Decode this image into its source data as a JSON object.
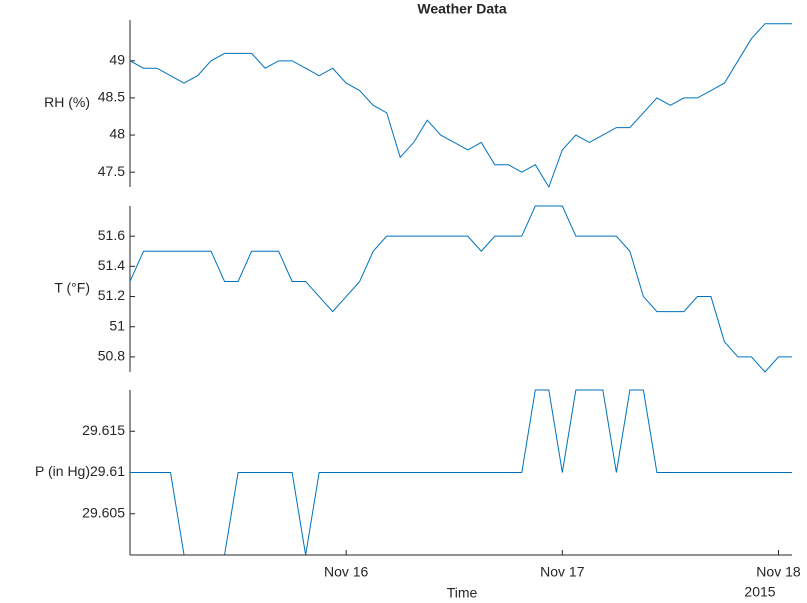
{
  "chart_data": {
    "type": "line",
    "title": "Weather Data",
    "xlabel": "Time",
    "x_secondary_label": "2015",
    "x": [
      15,
      15.0625,
      15.125,
      15.1875,
      15.25,
      15.3125,
      15.375,
      15.4375,
      15.5,
      15.5625,
      15.625,
      15.6875,
      15.75,
      15.8125,
      15.875,
      15.9375,
      16,
      16.0625,
      16.125,
      16.1875,
      16.25,
      16.3125,
      16.375,
      16.4375,
      16.5,
      16.5625,
      16.625,
      16.6875,
      16.75,
      16.8125,
      16.875,
      16.9375,
      17,
      17.0625,
      17.125,
      17.1875,
      17.25,
      17.3125,
      17.375,
      17.4375,
      17.5,
      17.5625,
      17.625,
      17.6875,
      17.75,
      17.8125,
      17.875,
      17.9375,
      18,
      18.0625
    ],
    "xlim": [
      15,
      18.0625
    ],
    "xticks": [
      {
        "value": 16,
        "label": "Nov 16"
      },
      {
        "value": 17,
        "label": "Nov 17"
      },
      {
        "value": 18,
        "label": "Nov 18"
      }
    ],
    "color": "#0072bd",
    "panels": [
      {
        "name": "RH (%)",
        "ylim": [
          47.3,
          49.55
        ],
        "yticks": [
          47.5,
          48,
          48.5,
          49
        ],
        "values": [
          49.0,
          48.9,
          48.9,
          48.8,
          48.7,
          48.8,
          49.0,
          49.1,
          49.1,
          49.1,
          48.9,
          49.0,
          49.0,
          48.9,
          48.8,
          48.9,
          48.7,
          48.6,
          48.4,
          48.3,
          47.7,
          47.9,
          48.2,
          48.0,
          47.9,
          47.8,
          47.9,
          47.6,
          47.6,
          47.5,
          47.6,
          47.3,
          47.8,
          48.0,
          47.9,
          48.0,
          48.1,
          48.1,
          48.3,
          48.5,
          48.4,
          48.5,
          48.5,
          48.6,
          48.7,
          49.0,
          49.3,
          49.5,
          49.5,
          49.5
        ]
      },
      {
        "name": "T (°F)",
        "ylim": [
          50.7,
          51.8
        ],
        "yticks": [
          50.8,
          51,
          51.2,
          51.4,
          51.6
        ],
        "values": [
          51.3,
          51.5,
          51.5,
          51.5,
          51.5,
          51.5,
          51.5,
          51.3,
          51.3,
          51.5,
          51.5,
          51.5,
          51.3,
          51.3,
          51.2,
          51.1,
          51.2,
          51.3,
          51.5,
          51.6,
          51.6,
          51.6,
          51.6,
          51.6,
          51.6,
          51.6,
          51.5,
          51.6,
          51.6,
          51.6,
          51.8,
          51.8,
          51.8,
          51.6,
          51.6,
          51.6,
          51.6,
          51.5,
          51.2,
          51.1,
          51.1,
          51.1,
          51.2,
          51.2,
          50.9,
          50.8,
          50.8,
          50.7,
          50.8,
          50.8
        ]
      },
      {
        "name": "P (in Hg)",
        "ylim": [
          29.6,
          29.62
        ],
        "yticks": [
          29.605,
          29.61,
          29.615
        ],
        "values": [
          29.61,
          29.61,
          29.61,
          29.61,
          29.6,
          29.6,
          29.6,
          29.6,
          29.61,
          29.61,
          29.61,
          29.61,
          29.61,
          29.6,
          29.61,
          29.61,
          29.61,
          29.61,
          29.61,
          29.61,
          29.61,
          29.61,
          29.61,
          29.61,
          29.61,
          29.61,
          29.61,
          29.61,
          29.61,
          29.61,
          29.62,
          29.62,
          29.61,
          29.62,
          29.62,
          29.62,
          29.61,
          29.62,
          29.62,
          29.61,
          29.61,
          29.61,
          29.61,
          29.61,
          29.61,
          29.61,
          29.61,
          29.61,
          29.61,
          29.61
        ]
      }
    ]
  }
}
